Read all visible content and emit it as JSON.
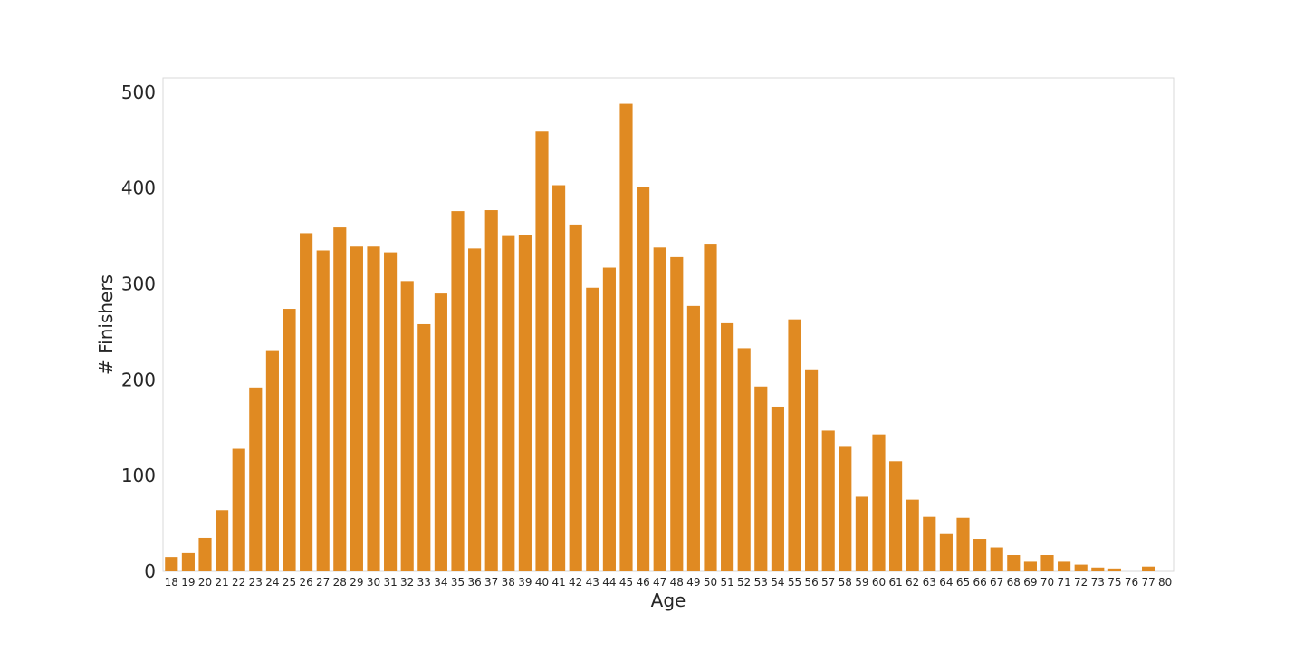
{
  "chart_data": {
    "type": "bar",
    "title": "",
    "xlabel": "Age",
    "ylabel": "# Finishers",
    "color": "#e08a22",
    "frame_color": "#d9d9d9",
    "grid": false,
    "ylim": [
      0,
      515
    ],
    "yticks": [
      0,
      100,
      200,
      300,
      400,
      500
    ],
    "categories": [
      "18",
      "19",
      "20",
      "21",
      "22",
      "23",
      "24",
      "25",
      "26",
      "27",
      "28",
      "29",
      "30",
      "31",
      "32",
      "33",
      "34",
      "35",
      "36",
      "37",
      "38",
      "39",
      "40",
      "41",
      "42",
      "43",
      "44",
      "45",
      "46",
      "47",
      "48",
      "49",
      "50",
      "51",
      "52",
      "53",
      "54",
      "55",
      "56",
      "57",
      "58",
      "59",
      "60",
      "61",
      "62",
      "63",
      "64",
      "65",
      "66",
      "67",
      "68",
      "69",
      "70",
      "71",
      "72",
      "73",
      "75",
      "76",
      "77",
      "80"
    ],
    "values": [
      15,
      19,
      35,
      64,
      128,
      192,
      230,
      274,
      353,
      335,
      359,
      339,
      339,
      333,
      303,
      258,
      290,
      376,
      337,
      377,
      350,
      351,
      459,
      403,
      362,
      296,
      317,
      488,
      401,
      338,
      328,
      277,
      342,
      259,
      233,
      193,
      172,
      263,
      210,
      147,
      130,
      78,
      143,
      115,
      75,
      57,
      39,
      56,
      34,
      25,
      17,
      10,
      17,
      10,
      7,
      4,
      3,
      0,
      5,
      0
    ]
  }
}
